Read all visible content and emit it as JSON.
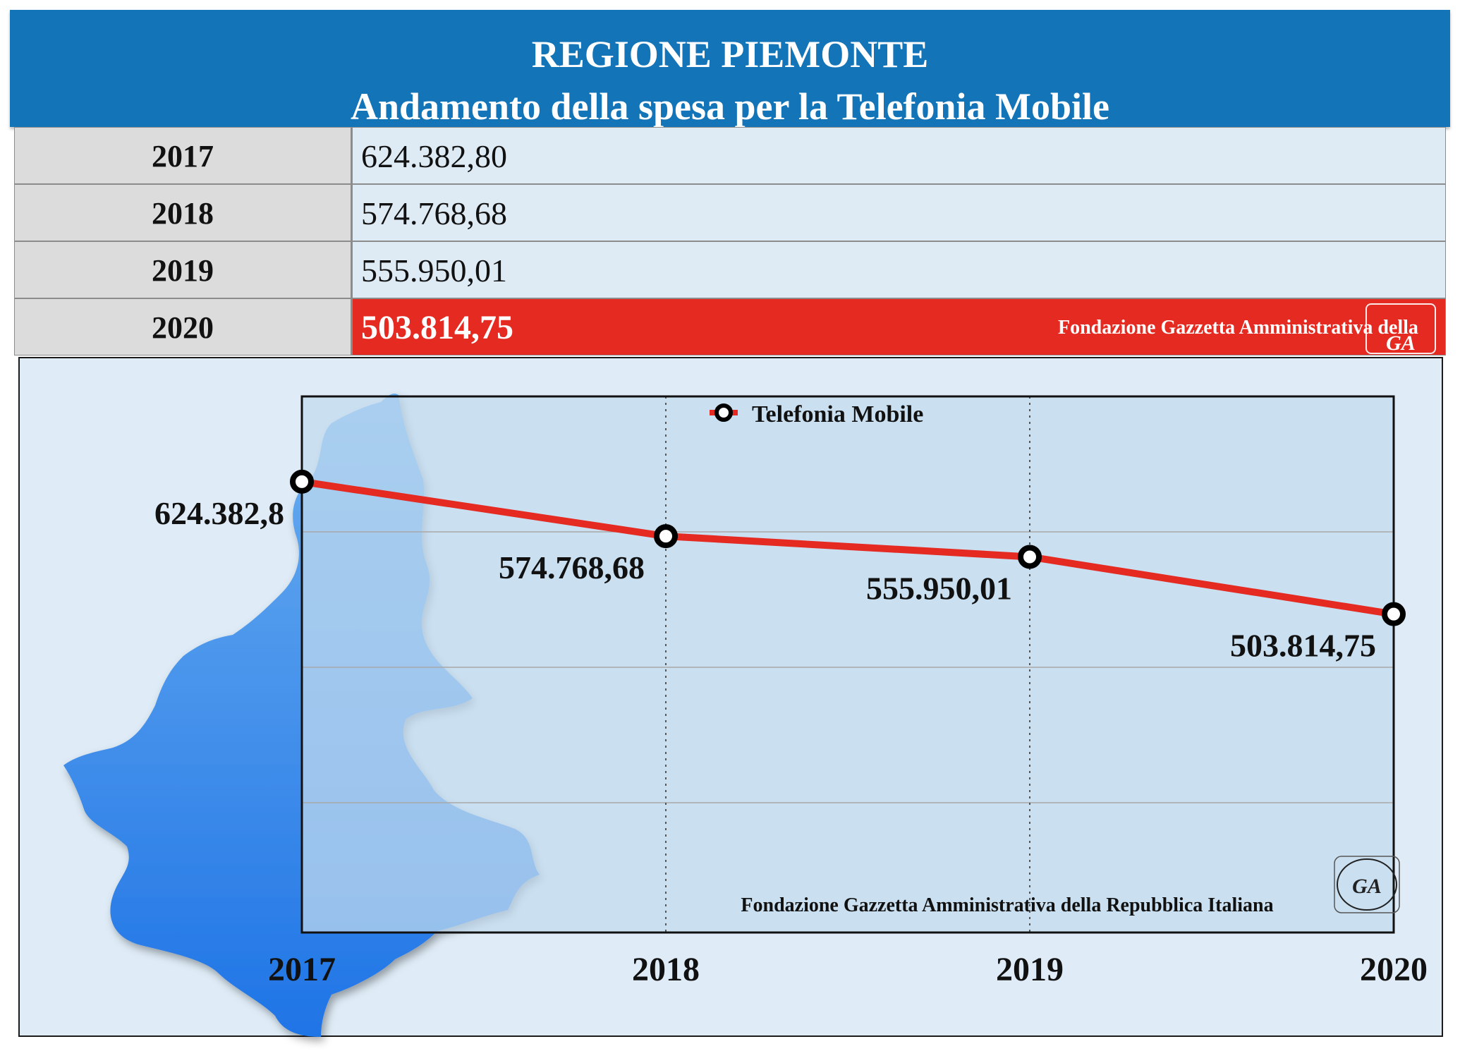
{
  "header": {
    "title": "REGIONE PIEMONTE",
    "subtitle": "Andamento della spesa per la Telefonia Mobile"
  },
  "table": {
    "rows": [
      {
        "year": "2017",
        "value": "624.382,80"
      },
      {
        "year": "2018",
        "value": "574.768,68"
      },
      {
        "year": "2019",
        "value": "555.950,01"
      },
      {
        "year": "2020",
        "value": "503.814,75"
      }
    ],
    "highlight_note": "Fondazione Gazzetta Amministrativa della Repubblica Italiana",
    "seal_text": "GA"
  },
  "chart_data": {
    "type": "line",
    "categories": [
      "2017",
      "2018",
      "2019",
      "2020"
    ],
    "series": [
      {
        "name": "Telefonia Mobile",
        "values": [
          624382.8,
          574768.68,
          555950.01,
          503814.75
        ],
        "color": "#e52a22"
      }
    ],
    "data_labels": [
      "624.382,8",
      "574.768,68",
      "555.950,01",
      "503.814,75"
    ],
    "footer_note": "Fondazione Gazzetta Amministrativa della Repubblica Italiana",
    "seal_text": "GA",
    "legend_position": "top-center",
    "grid": true
  },
  "colors": {
    "header_bg": "#1474b8",
    "highlight_bg": "#e52a22",
    "line": "#e52a22",
    "plot_bg": "#c2dbee",
    "map_fill": "#3b86e8"
  }
}
